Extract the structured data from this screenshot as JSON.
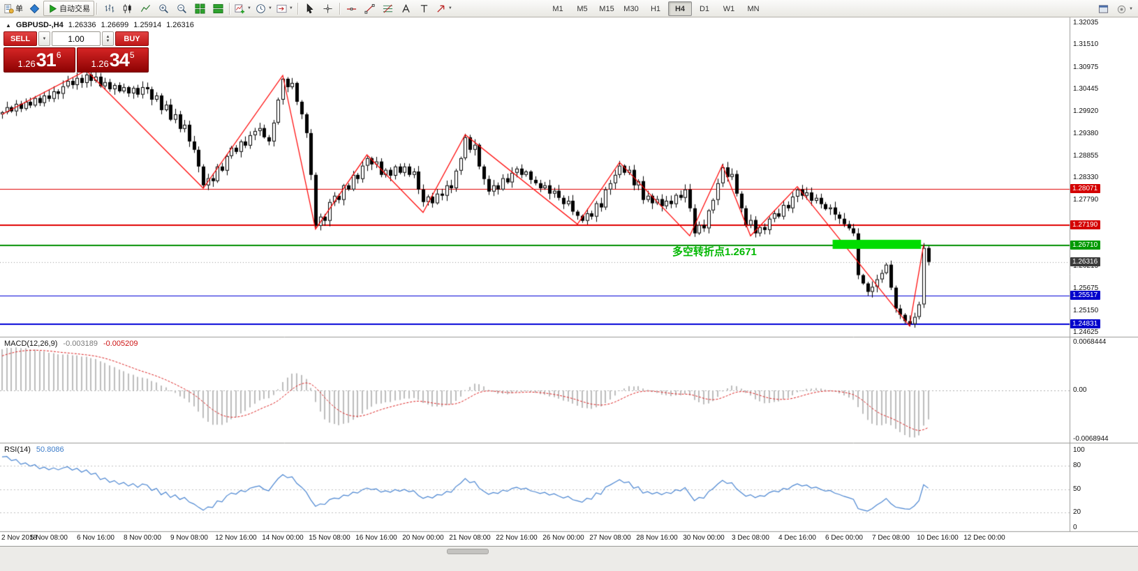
{
  "toolbar": {
    "groups": [
      {
        "name": "order-group",
        "items": [
          {
            "name": "new-order-button",
            "icon": "order",
            "label": "单"
          },
          {
            "name": "expert-advisor-icon",
            "icon": "diamond"
          },
          {
            "name": "autotrading-button",
            "icon": "play",
            "label": "自动交易",
            "raised": true
          }
        ]
      },
      {
        "name": "chart-type-group",
        "items": [
          {
            "name": "bar-chart-button",
            "icon": "bars"
          },
          {
            "name": "candlestick-button",
            "icon": "candles"
          },
          {
            "name": "line-chart-button",
            "icon": "linechart"
          },
          {
            "name": "zoom-in-button",
            "icon": "zoomin"
          },
          {
            "name": "zoom-out-button",
            "icon": "zoomout"
          },
          {
            "name": "tile-windows-button",
            "icon": "tile"
          },
          {
            "name": "cascade-windows-button",
            "icon": "tile2"
          }
        ]
      },
      {
        "name": "chart-tools-group",
        "items": [
          {
            "name": "new-chart-button",
            "icon": "newchart",
            "dropdown": true
          },
          {
            "name": "profiles-button",
            "icon": "clock",
            "dropdown": true
          },
          {
            "name": "chart-shift-button",
            "icon": "shift",
            "dropdown": true
          }
        ]
      },
      {
        "name": "cursor-group",
        "items": [
          {
            "name": "cursor-button",
            "icon": "cursor"
          },
          {
            "name": "crosshair-button",
            "icon": "crosshair"
          }
        ]
      },
      {
        "name": "draw-group",
        "items": [
          {
            "name": "horizontal-line-button",
            "icon": "hline"
          },
          {
            "name": "trendline-button",
            "icon": "trendline"
          },
          {
            "name": "fibonacci-button",
            "icon": "fibo"
          },
          {
            "name": "text-button",
            "icon": "textA"
          },
          {
            "name": "text-label-button",
            "icon": "textT"
          },
          {
            "name": "arrows-button",
            "icon": "shapes",
            "dropdown": true
          }
        ]
      }
    ],
    "timeframes": {
      "items": [
        "M1",
        "M5",
        "M15",
        "M30",
        "H1",
        "H4",
        "D1",
        "W1",
        "MN"
      ],
      "active": "H4"
    },
    "right_items": [
      {
        "name": "chart-windows-icon",
        "icon": "winicon"
      },
      {
        "name": "toolbar-options-icon",
        "icon": "gear",
        "dropdown": true
      }
    ]
  },
  "symbol_bar": {
    "collapse_icon": "▲",
    "title": "GBPUSD-,H4",
    "open": "1.26336",
    "high": "1.26699",
    "low": "1.25914",
    "close": "1.26316"
  },
  "trade_panel": {
    "sell_label": "SELL",
    "buy_label": "BUY",
    "volume": "1.00",
    "bid_prefix": "1.26",
    "bid_big": "31",
    "bid_sup": "6",
    "ask_prefix": "1.26",
    "ask_big": "34",
    "ask_sup": "5"
  },
  "chart_data": {
    "type": "candlestick",
    "symbol": "GBPUSD-",
    "timeframe": "H4",
    "ohlc_current": {
      "open": 1.26336,
      "high": 1.26699,
      "low": 1.25914,
      "close": 1.26316
    },
    "bid": 1.26316,
    "ask": 1.26345,
    "y_axis": {
      "visible_max": 1.32035,
      "visible_min": 1.24625
    },
    "y_tick_labels": [
      "1.32035",
      "1.31510",
      "1.30975",
      "1.30445",
      "1.29920",
      "1.29380",
      "1.28855",
      "1.28330",
      "1.27790",
      "1.26215",
      "1.25675",
      "1.25150",
      "1.24625"
    ],
    "x_labels": [
      {
        "i": 0,
        "t": "2 Nov 2018"
      },
      {
        "i": 10,
        "t": "5 Nov 08:00"
      },
      {
        "i": 20,
        "t": "6 Nov 16:00"
      },
      {
        "i": 30,
        "t": "8 Nov 00:00"
      },
      {
        "i": 40,
        "t": "9 Nov 08:00"
      },
      {
        "i": 50,
        "t": "12 Nov 16:00"
      },
      {
        "i": 60,
        "t": "14 Nov 00:00"
      },
      {
        "i": 70,
        "t": "15 Nov 08:00"
      },
      {
        "i": 80,
        "t": "16 Nov 16:00"
      },
      {
        "i": 90,
        "t": "20 Nov 00:00"
      },
      {
        "i": 100,
        "t": "21 Nov 08:00"
      },
      {
        "i": 110,
        "t": "22 Nov 16:00"
      },
      {
        "i": 120,
        "t": "26 Nov 00:00"
      },
      {
        "i": 130,
        "t": "27 Nov 08:00"
      },
      {
        "i": 140,
        "t": "28 Nov 16:00"
      },
      {
        "i": 150,
        "t": "30 Nov 00:00"
      },
      {
        "i": 160,
        "t": "3 Dec 08:00"
      },
      {
        "i": 170,
        "t": "4 Dec 16:00"
      },
      {
        "i": 180,
        "t": "6 Dec 00:00"
      },
      {
        "i": 190,
        "t": "7 Dec 08:00"
      },
      {
        "i": 200,
        "t": "10 Dec 16:00"
      },
      {
        "i": 210,
        "t": "12 Dec 00:00"
      }
    ],
    "levels": [
      {
        "price": 1.28071,
        "color": "#e00000",
        "width": 1,
        "label": "1.28071",
        "tag_bg": "#d40000"
      },
      {
        "price": 1.2719,
        "color": "#e00000",
        "width": 2,
        "label": "1.27190",
        "tag_bg": "#d40000"
      },
      {
        "price": 1.2671,
        "color": "#008f00",
        "width": 2,
        "label": "1.26710",
        "tag_bg": "#009a00"
      },
      {
        "price": 1.25517,
        "color": "#0000d8",
        "width": 1,
        "label": "1.25517",
        "tag_bg": "#0000cc"
      },
      {
        "price": 1.24831,
        "color": "#0000d8",
        "width": 2,
        "label": "1.24831",
        "tag_bg": "#0000cc"
      }
    ],
    "current_price_tag": {
      "price": 1.26316,
      "label": "1.26316",
      "tag_bg": "#3c3c3c"
    },
    "highlight_rect": {
      "i1": 178,
      "i2": 196,
      "p1": 1.26845,
      "p2": 1.26628,
      "color": "#00dc00"
    },
    "zigzag": {
      "color": "#ff0000",
      "points": [
        [
          0,
          1.2985
        ],
        [
          18,
          1.309
        ],
        [
          43,
          1.2808
        ],
        [
          60,
          1.3078
        ],
        [
          67,
          1.271
        ],
        [
          78,
          1.2888
        ],
        [
          90,
          1.275
        ],
        [
          99,
          1.2936
        ],
        [
          123,
          1.2722
        ],
        [
          132,
          1.287
        ],
        [
          147,
          1.2694
        ],
        [
          154,
          1.2864
        ],
        [
          160,
          1.2694
        ],
        [
          170,
          1.2812
        ],
        [
          194,
          1.2478
        ],
        [
          197,
          1.2672
        ]
      ]
    },
    "warmup_closes": [
      1.271,
      1.2718,
      1.2725,
      1.272,
      1.2735,
      1.2742,
      1.2738,
      1.2755,
      1.2762,
      1.2758,
      1.2775,
      1.2785,
      1.278,
      1.28,
      1.2812,
      1.2808,
      1.2828,
      1.284,
      1.2835,
      1.2858,
      1.287,
      1.2865,
      1.289,
      1.2905,
      1.29,
      1.2925,
      1.294,
      1.295,
      1.2968,
      1.2985
    ],
    "closes": [
      1.299,
      1.3002,
      1.2992,
      1.301,
      1.2998,
      1.3015,
      1.3006,
      1.3024,
      1.3012,
      1.303,
      1.3022,
      1.304,
      1.3034,
      1.3052,
      1.3065,
      1.3055,
      1.3072,
      1.306,
      1.308,
      1.3065,
      1.3075,
      1.3052,
      1.3062,
      1.3045,
      1.3055,
      1.304,
      1.305,
      1.3035,
      1.3048,
      1.3032,
      1.305,
      1.3045,
      1.302,
      1.303,
      1.2995,
      1.3008,
      1.2972,
      1.2985,
      1.295,
      1.296,
      1.292,
      1.29,
      1.286,
      1.2815,
      1.2832,
      1.2825,
      1.286,
      1.285,
      1.2885,
      1.2905,
      1.2895,
      1.292,
      1.291,
      1.2935,
      1.2945,
      1.2952,
      1.293,
      1.292,
      1.2965,
      1.302,
      1.307,
      1.305,
      1.306,
      1.3015,
      1.2985,
      1.294,
      1.284,
      1.2718,
      1.274,
      1.273,
      1.2775,
      1.279,
      1.278,
      1.2815,
      1.2805,
      1.284,
      1.283,
      1.2862,
      1.288,
      1.2865,
      1.2872,
      1.284,
      1.2852,
      1.2838,
      1.286,
      1.2845,
      1.286,
      1.284,
      1.2848,
      1.2805,
      1.2775,
      1.2788,
      1.2772,
      1.2795,
      1.279,
      1.2815,
      1.2808,
      1.285,
      1.288,
      1.293,
      1.29,
      1.2912,
      1.286,
      1.283,
      1.28,
      1.2815,
      1.2805,
      1.2832,
      1.2822,
      1.2845,
      1.2855,
      1.284,
      1.2848,
      1.2828,
      1.282,
      1.2808,
      1.2815,
      1.2795,
      1.2802,
      1.2785,
      1.277,
      1.2778,
      1.2752,
      1.2742,
      1.273,
      1.2748,
      1.274,
      1.2772,
      1.2762,
      1.2805,
      1.282,
      1.284,
      1.2862,
      1.2845,
      1.2852,
      1.2815,
      1.2825,
      1.278,
      1.279,
      1.2772,
      1.2782,
      1.2765,
      1.2778,
      1.277,
      1.2792,
      1.2785,
      1.2805,
      1.276,
      1.27,
      1.272,
      1.2712,
      1.2755,
      1.278,
      1.282,
      1.2858,
      1.2835,
      1.2842,
      1.2795,
      1.276,
      1.272,
      1.2732,
      1.27,
      1.2715,
      1.2708,
      1.2735,
      1.2748,
      1.274,
      1.2768,
      1.276,
      1.2788,
      1.2805,
      1.279,
      1.2798,
      1.2778,
      1.2785,
      1.277,
      1.2758,
      1.2762,
      1.2745,
      1.2735,
      1.2722,
      1.2712,
      1.27,
      1.26,
      1.258,
      1.256,
      1.2572,
      1.259,
      1.2605,
      1.2625,
      1.257,
      1.252,
      1.2505,
      1.249,
      1.2483,
      1.25,
      1.253,
      1.2665,
      1.26316
    ],
    "indicators": {
      "macd": {
        "label": "MACD(12,26,9)",
        "fast": 12,
        "slow": 26,
        "signal": 9,
        "value_main": "-0.003189",
        "value_signal": "-0.005209",
        "scale_labels": [
          "0.0068444",
          "0.00",
          "-0.0068944"
        ],
        "histogram_color": "#bdbdbd",
        "signal_color": "#dd2222"
      },
      "rsi": {
        "label": "RSI(14)",
        "period": 14,
        "value": "50.8086",
        "scale_labels": [
          "100",
          "80",
          "50",
          "20",
          "0"
        ],
        "levels": [
          80,
          50,
          20
        ],
        "line_color": "#4b86d2"
      }
    },
    "annotation": {
      "text": "多空转折点1.2671",
      "color": "#00b800"
    }
  }
}
